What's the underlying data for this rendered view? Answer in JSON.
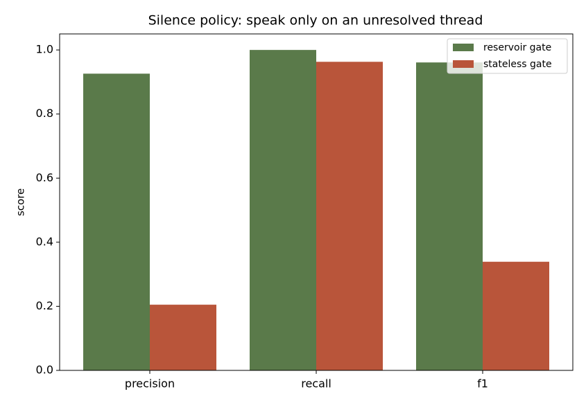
{
  "chart_data": {
    "type": "bar",
    "title": "Silence policy: speak only on an unresolved thread",
    "ylabel": "score",
    "categories": [
      "precision",
      "recall",
      "f1"
    ],
    "series": [
      {
        "name": "reservoir gate",
        "color": "#5a7a4a",
        "values": [
          0.926,
          1.0,
          0.961
        ]
      },
      {
        "name": "stateless gate",
        "color": "#b9553a",
        "values": [
          0.205,
          0.963,
          0.339
        ]
      }
    ],
    "ylim": [
      0,
      1.05
    ],
    "yticks": [
      {
        "value": 0,
        "label": "0.0"
      },
      0.2,
      0.4,
      0.6,
      0.8,
      {
        "value": 1,
        "label": "1.0"
      }
    ],
    "legend": "upper right"
  }
}
